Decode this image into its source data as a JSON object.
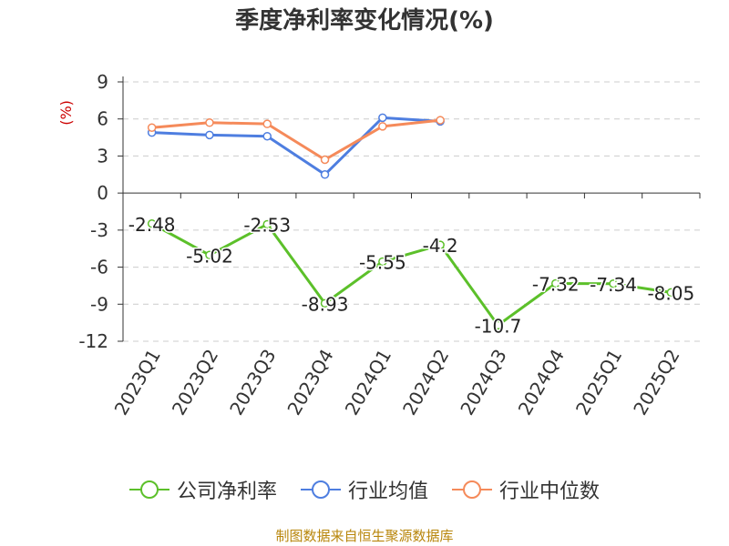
{
  "chart_data": {
    "type": "line",
    "title": "季度净利率变化情况(%)",
    "ylabel": "(%)",
    "xlabel": "",
    "categories": [
      "2023Q1",
      "2023Q2",
      "2023Q3",
      "2023Q4",
      "2024Q1",
      "2024Q2",
      "2024Q3",
      "2024Q4",
      "2025Q1",
      "2025Q2"
    ],
    "ylim": [
      -12,
      9
    ],
    "yticks": [
      9,
      6,
      3,
      0,
      -3,
      -6,
      -9,
      -12
    ],
    "grid": true,
    "legend_position": "bottom",
    "series": [
      {
        "name": "公司净利率",
        "color": "#5cc02a",
        "values": [
          -2.48,
          -5.02,
          -2.53,
          -8.93,
          -5.55,
          -4.2,
          -10.7,
          -7.32,
          -7.34,
          -8.05
        ],
        "labels": [
          "-2.48",
          "-5.02",
          "-2.53",
          "-8.93",
          "-5.55",
          "-4.2",
          "-10.7",
          "-7.32",
          "-7.34",
          "-8.05"
        ]
      },
      {
        "name": "行业均值",
        "color": "#4e7ee0",
        "values": [
          4.9,
          4.7,
          4.6,
          1.5,
          6.1,
          5.8,
          null,
          null,
          null,
          null
        ]
      },
      {
        "name": "行业中位数",
        "color": "#f58a5a",
        "values": [
          5.3,
          5.7,
          5.6,
          2.7,
          5.4,
          5.9,
          null,
          null,
          null,
          null
        ]
      }
    ]
  },
  "source_text": "制图数据来自恒生聚源数据库",
  "y_axis_label_color": "#cc0000",
  "grid_color": "#cccccc",
  "axis_color": "#333333"
}
